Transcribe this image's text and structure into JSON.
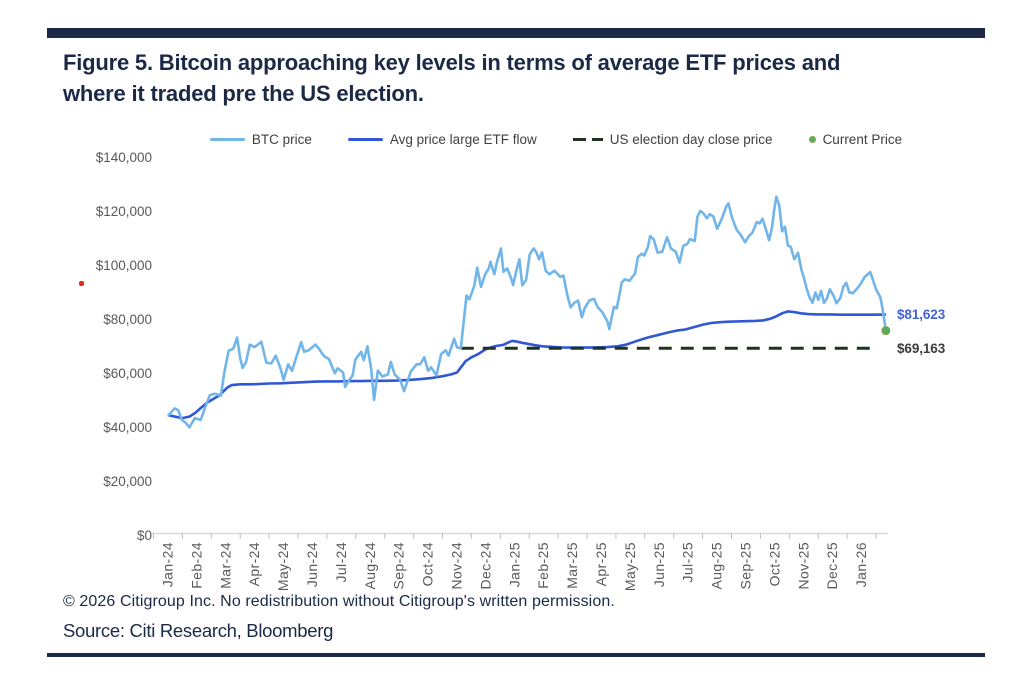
{
  "title": "Figure 5. Bitcoin approaching key levels in terms of average ETF prices and where it traded pre the US election.",
  "legend": {
    "btc_label": "BTC price",
    "etf_label": "Avg price large ETF flow",
    "election_label": "US election day close price",
    "current_label": "Current Price"
  },
  "colors": {
    "btc_line": "#72b5e9",
    "etf_line": "#3058d4",
    "election_dash": "#20331f",
    "current_dot": "#57b059",
    "current_dot_ring": "#84a04c",
    "navy": "#1b2946",
    "axis_text": "#595959",
    "annotation_blue": "#4263d5",
    "annotation_dark": "#3d3d3d"
  },
  "annotations": {
    "etf_end_label": "$81,623",
    "election_label": "$69,163"
  },
  "footer": {
    "copyright": "© 2026 Citigroup Inc. No redistribution without Citigroup's written permission.",
    "source": "Source: Citi Research, Bloomberg"
  },
  "chart_data": {
    "type": "line",
    "title": "Bitcoin price vs average ETF prices",
    "x_unit": "months since Jan-2024",
    "values_unit": "USD thousands",
    "x_tick_labels": [
      "Jan-24",
      "Feb-24",
      "Mar-24",
      "Apr-24",
      "May-24",
      "Jun-24",
      "Jul-24",
      "Aug-24",
      "Sep-24",
      "Oct-24",
      "Nov-24",
      "Dec-24",
      "Jan-25",
      "Feb-25",
      "Mar-25",
      "Apr-25",
      "May-25",
      "Jun-25",
      "Jul-25",
      "Aug-25",
      "Sep-25",
      "Oct-25",
      "Nov-25",
      "Dec-25",
      "Jan-26"
    ],
    "y_tick_labels": [
      "$0",
      "$20,000",
      "$40,000",
      "$60,000",
      "$80,000",
      "$100,000",
      "$120,000",
      "$140,000"
    ],
    "ylim": [
      0,
      140000
    ],
    "grid": false,
    "legend_position": "top",
    "series": [
      {
        "name": "BTC price",
        "points": [
          [
            0,
            44.2
          ],
          [
            0.23,
            46.9
          ],
          [
            0.35,
            46.3
          ],
          [
            0.48,
            42.6
          ],
          [
            0.61,
            41.6
          ],
          [
            0.74,
            39.9
          ],
          [
            0.93,
            43.3
          ],
          [
            1.13,
            42.6
          ],
          [
            1.28,
            47.1
          ],
          [
            1.45,
            51.8
          ],
          [
            1.62,
            52.3
          ],
          [
            1.83,
            51.6
          ],
          [
            1.95,
            60.4
          ],
          [
            2.1,
            68.3
          ],
          [
            2.26,
            69.0
          ],
          [
            2.39,
            73.1
          ],
          [
            2.5,
            65.3
          ],
          [
            2.58,
            61.9
          ],
          [
            2.7,
            64.0
          ],
          [
            2.83,
            70.5
          ],
          [
            3.0,
            69.6
          ],
          [
            3.23,
            71.6
          ],
          [
            3.4,
            63.9
          ],
          [
            3.57,
            63.5
          ],
          [
            3.73,
            66.4
          ],
          [
            3.9,
            61.5
          ],
          [
            4.0,
            57.5
          ],
          [
            4.16,
            63.2
          ],
          [
            4.29,
            60.8
          ],
          [
            4.45,
            66.2
          ],
          [
            4.61,
            71.4
          ],
          [
            4.71,
            67.9
          ],
          [
            4.87,
            68.4
          ],
          [
            5.1,
            70.5
          ],
          [
            5.2,
            69.3
          ],
          [
            5.33,
            67.3
          ],
          [
            5.43,
            66.0
          ],
          [
            5.57,
            65.2
          ],
          [
            5.77,
            59.9
          ],
          [
            5.87,
            61.7
          ],
          [
            6.06,
            60.2
          ],
          [
            6.13,
            54.8
          ],
          [
            6.23,
            56.7
          ],
          [
            6.39,
            59.2
          ],
          [
            6.48,
            64.9
          ],
          [
            6.68,
            67.9
          ],
          [
            6.77,
            64.7
          ],
          [
            6.9,
            69.9
          ],
          [
            7.03,
            61.4
          ],
          [
            7.13,
            50.0
          ],
          [
            7.26,
            60.9
          ],
          [
            7.42,
            58.7
          ],
          [
            7.61,
            59.5
          ],
          [
            7.71,
            64.1
          ],
          [
            7.84,
            59.5
          ],
          [
            8.03,
            57.5
          ],
          [
            8.17,
            53.3
          ],
          [
            8.4,
            60.5
          ],
          [
            8.6,
            63.2
          ],
          [
            8.73,
            63.3
          ],
          [
            8.87,
            65.8
          ],
          [
            9.0,
            60.8
          ],
          [
            9.1,
            62.1
          ],
          [
            9.29,
            59.1
          ],
          [
            9.45,
            67.0
          ],
          [
            9.61,
            68.4
          ],
          [
            9.71,
            66.4
          ],
          [
            9.9,
            72.7
          ],
          [
            10.0,
            69.5
          ],
          [
            10.13,
            69.2
          ],
          [
            10.2,
            75.9
          ],
          [
            10.33,
            88.7
          ],
          [
            10.43,
            87.3
          ],
          [
            10.6,
            92.3
          ],
          [
            10.7,
            99.0
          ],
          [
            10.83,
            91.9
          ],
          [
            10.97,
            96.4
          ],
          [
            11.1,
            98.8
          ],
          [
            11.16,
            101.2
          ],
          [
            11.29,
            96.6
          ],
          [
            11.39,
            101.4
          ],
          [
            11.52,
            106.1
          ],
          [
            11.61,
            97.5
          ],
          [
            11.74,
            98.7
          ],
          [
            11.87,
            95.2
          ],
          [
            11.94,
            92.6
          ],
          [
            12.06,
            98.1
          ],
          [
            12.16,
            102.1
          ],
          [
            12.26,
            92.5
          ],
          [
            12.39,
            94.5
          ],
          [
            12.52,
            104.0
          ],
          [
            12.65,
            106.1
          ],
          [
            12.74,
            104.8
          ],
          [
            12.84,
            102.1
          ],
          [
            12.94,
            104.7
          ],
          [
            13.07,
            97.8
          ],
          [
            13.2,
            96.6
          ],
          [
            13.37,
            97.9
          ],
          [
            13.57,
            95.6
          ],
          [
            13.68,
            96.1
          ],
          [
            13.82,
            88.7
          ],
          [
            13.93,
            84.3
          ],
          [
            14.06,
            86.0
          ],
          [
            14.19,
            86.8
          ],
          [
            14.32,
            80.6
          ],
          [
            14.42,
            84.0
          ],
          [
            14.58,
            86.9
          ],
          [
            14.74,
            87.5
          ],
          [
            14.87,
            84.4
          ],
          [
            15.03,
            82.5
          ],
          [
            15.2,
            79.2
          ],
          [
            15.27,
            76.3
          ],
          [
            15.43,
            84.5
          ],
          [
            15.53,
            84.0
          ],
          [
            15.7,
            93.4
          ],
          [
            15.8,
            94.7
          ],
          [
            15.97,
            94.2
          ],
          [
            16.16,
            96.8
          ],
          [
            16.26,
            102.9
          ],
          [
            16.39,
            104.2
          ],
          [
            16.48,
            103.5
          ],
          [
            16.61,
            106.8
          ],
          [
            16.68,
            110.7
          ],
          [
            16.81,
            109.4
          ],
          [
            16.94,
            104.6
          ],
          [
            17.1,
            104.9
          ],
          [
            17.27,
            110.3
          ],
          [
            17.4,
            106.1
          ],
          [
            17.57,
            104.9
          ],
          [
            17.7,
            100.9
          ],
          [
            17.83,
            107.1
          ],
          [
            17.97,
            107.8
          ],
          [
            18.06,
            109.6
          ],
          [
            18.23,
            108.9
          ],
          [
            18.32,
            117.9
          ],
          [
            18.42,
            120.0
          ],
          [
            18.52,
            119.2
          ],
          [
            18.65,
            117.3
          ],
          [
            18.74,
            118.8
          ],
          [
            18.87,
            118.0
          ],
          [
            19.0,
            113.4
          ],
          [
            19.16,
            117.0
          ],
          [
            19.32,
            121.7
          ],
          [
            19.39,
            122.8
          ],
          [
            19.52,
            117.5
          ],
          [
            19.68,
            112.9
          ],
          [
            19.81,
            111.3
          ],
          [
            19.97,
            108.4
          ],
          [
            20.1,
            110.7
          ],
          [
            20.23,
            112.1
          ],
          [
            20.37,
            115.9
          ],
          [
            20.47,
            115.4
          ],
          [
            20.57,
            117.1
          ],
          [
            20.7,
            112.8
          ],
          [
            20.8,
            109.2
          ],
          [
            20.9,
            113.9
          ],
          [
            20.97,
            119.9
          ],
          [
            21.05,
            125.3
          ],
          [
            21.15,
            122.1
          ],
          [
            21.25,
            112.5
          ],
          [
            21.35,
            114.1
          ],
          [
            21.45,
            107.2
          ],
          [
            21.55,
            106.7
          ],
          [
            21.67,
            102.1
          ],
          [
            21.8,
            104.5
          ],
          [
            21.92,
            98.1
          ],
          [
            22.0,
            95.4
          ],
          [
            22.1,
            91.2
          ],
          [
            22.2,
            88.0
          ],
          [
            22.3,
            86.0
          ],
          [
            22.4,
            89.8
          ],
          [
            22.5,
            87.1
          ],
          [
            22.6,
            90.4
          ],
          [
            22.7,
            86.0
          ],
          [
            22.8,
            87.6
          ],
          [
            22.9,
            91.0
          ],
          [
            23.03,
            88.6
          ],
          [
            23.13,
            85.8
          ],
          [
            23.27,
            87.9
          ],
          [
            23.37,
            92.0
          ],
          [
            23.47,
            93.4
          ],
          [
            23.57,
            89.9
          ],
          [
            23.7,
            89.6
          ],
          [
            23.83,
            91.1
          ],
          [
            23.97,
            93.0
          ],
          [
            24.1,
            95.5
          ],
          [
            24.3,
            97.4
          ],
          [
            24.4,
            94.2
          ],
          [
            24.5,
            91.0
          ],
          [
            24.57,
            89.6
          ],
          [
            24.65,
            88.0
          ],
          [
            24.72,
            84.0
          ],
          [
            24.78,
            80.0
          ],
          [
            24.84,
            75.7
          ]
        ]
      },
      {
        "name": "Avg price large ETF flow",
        "points": [
          [
            0,
            44.4
          ],
          [
            0.25,
            43.8
          ],
          [
            0.5,
            43.3
          ],
          [
            0.75,
            43.9
          ],
          [
            0.95,
            45.3
          ],
          [
            1.15,
            47.2
          ],
          [
            1.35,
            49.0
          ],
          [
            1.55,
            50.3
          ],
          [
            1.75,
            51.5
          ],
          [
            1.9,
            53.0
          ],
          [
            2.05,
            54.6
          ],
          [
            2.2,
            55.5
          ],
          [
            2.5,
            55.8
          ],
          [
            2.8,
            55.8
          ],
          [
            3.1,
            55.9
          ],
          [
            3.5,
            56.1
          ],
          [
            3.9,
            56.2
          ],
          [
            4.3,
            56.4
          ],
          [
            4.7,
            56.6
          ],
          [
            5.1,
            56.8
          ],
          [
            5.5,
            56.9
          ],
          [
            5.9,
            56.9
          ],
          [
            6.3,
            57.0
          ],
          [
            6.7,
            57.0
          ],
          [
            7.1,
            57.1
          ],
          [
            7.5,
            57.1
          ],
          [
            7.9,
            57.2
          ],
          [
            8.3,
            57.4
          ],
          [
            8.7,
            57.7
          ],
          [
            9.1,
            58.1
          ],
          [
            9.5,
            58.8
          ],
          [
            9.8,
            59.5
          ],
          [
            10.0,
            60.2
          ],
          [
            10.15,
            62.3
          ],
          [
            10.3,
            64.4
          ],
          [
            10.5,
            65.8
          ],
          [
            10.7,
            66.8
          ],
          [
            10.85,
            67.8
          ],
          [
            11.0,
            68.8
          ],
          [
            11.15,
            69.4
          ],
          [
            11.35,
            70.0
          ],
          [
            11.6,
            70.4
          ],
          [
            11.75,
            71.2
          ],
          [
            11.9,
            71.9
          ],
          [
            12.05,
            71.7
          ],
          [
            12.25,
            71.2
          ],
          [
            12.45,
            70.8
          ],
          [
            12.7,
            70.3
          ],
          [
            12.95,
            69.9
          ],
          [
            13.25,
            69.7
          ],
          [
            13.6,
            69.5
          ],
          [
            14.0,
            69.4
          ],
          [
            14.4,
            69.4
          ],
          [
            14.8,
            69.5
          ],
          [
            15.2,
            69.6
          ],
          [
            15.55,
            69.9
          ],
          [
            15.85,
            70.5
          ],
          [
            16.1,
            71.4
          ],
          [
            16.4,
            72.5
          ],
          [
            16.7,
            73.4
          ],
          [
            17.0,
            74.2
          ],
          [
            17.3,
            75.0
          ],
          [
            17.6,
            75.7
          ],
          [
            17.9,
            76.1
          ],
          [
            18.2,
            77.0
          ],
          [
            18.5,
            77.9
          ],
          [
            18.8,
            78.5
          ],
          [
            19.1,
            78.8
          ],
          [
            19.4,
            79.0
          ],
          [
            19.7,
            79.1
          ],
          [
            20.0,
            79.2
          ],
          [
            20.3,
            79.3
          ],
          [
            20.6,
            79.5
          ],
          [
            20.85,
            80.1
          ],
          [
            21.05,
            81.0
          ],
          [
            21.25,
            82.1
          ],
          [
            21.45,
            82.8
          ],
          [
            21.65,
            82.6
          ],
          [
            21.9,
            82.1
          ],
          [
            22.15,
            81.8
          ],
          [
            22.5,
            81.7
          ],
          [
            22.9,
            81.7
          ],
          [
            23.3,
            81.6
          ],
          [
            23.8,
            81.6
          ],
          [
            24.3,
            81.6
          ],
          [
            24.84,
            81.623
          ]
        ]
      }
    ],
    "election_day_close": {
      "value": 69163,
      "start_month": 10.13,
      "label": "$69,163"
    },
    "current_price": {
      "month": 24.84,
      "value": 75700,
      "label": "Current Price"
    },
    "etf_end_value": 81623
  }
}
